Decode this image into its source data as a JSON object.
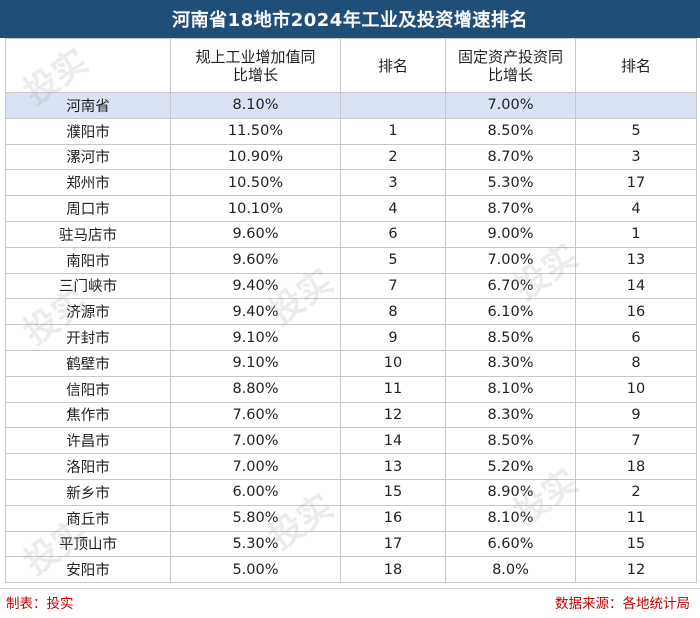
{
  "title": "河南省18地市2024年工业及投资增速排名",
  "headers": {
    "city": "",
    "industry_growth": "规上工业增加值同比增长",
    "industry_rank": "排名",
    "invest_growth": "固定资产投资同比增长",
    "invest_rank": "排名"
  },
  "province": {
    "name": "河南省",
    "industry": "8.10%",
    "industry_rank": "",
    "invest": "7.00%",
    "invest_rank": ""
  },
  "rows": [
    {
      "city": "濮阳市",
      "industry": "11.50%",
      "industry_rank": "1",
      "invest": "8.50%",
      "invest_rank": "5"
    },
    {
      "city": "漯河市",
      "industry": "10.90%",
      "industry_rank": "2",
      "invest": "8.70%",
      "invest_rank": "3"
    },
    {
      "city": "郑州市",
      "industry": "10.50%",
      "industry_rank": "3",
      "invest": "5.30%",
      "invest_rank": "17"
    },
    {
      "city": "周口市",
      "industry": "10.10%",
      "industry_rank": "4",
      "invest": "8.70%",
      "invest_rank": "4"
    },
    {
      "city": "驻马店市",
      "industry": "9.60%",
      "industry_rank": "6",
      "invest": "9.00%",
      "invest_rank": "1"
    },
    {
      "city": "南阳市",
      "industry": "9.60%",
      "industry_rank": "5",
      "invest": "7.00%",
      "invest_rank": "13"
    },
    {
      "city": "三门峡市",
      "industry": "9.40%",
      "industry_rank": "7",
      "invest": "6.70%",
      "invest_rank": "14"
    },
    {
      "city": "济源市",
      "industry": "9.40%",
      "industry_rank": "8",
      "invest": "6.10%",
      "invest_rank": "16"
    },
    {
      "city": "开封市",
      "industry": "9.10%",
      "industry_rank": "9",
      "invest": "8.50%",
      "invest_rank": "6"
    },
    {
      "city": "鹤壁市",
      "industry": "9.10%",
      "industry_rank": "10",
      "invest": "8.30%",
      "invest_rank": "8"
    },
    {
      "city": "信阳市",
      "industry": "8.80%",
      "industry_rank": "11",
      "invest": "8.10%",
      "invest_rank": "10"
    },
    {
      "city": "焦作市",
      "industry": "7.60%",
      "industry_rank": "12",
      "invest": "8.30%",
      "invest_rank": "9"
    },
    {
      "city": "许昌市",
      "industry": "7.00%",
      "industry_rank": "14",
      "invest": "8.50%",
      "invest_rank": "7"
    },
    {
      "city": "洛阳市",
      "industry": "7.00%",
      "industry_rank": "13",
      "invest": "5.20%",
      "invest_rank": "18"
    },
    {
      "city": "新乡市",
      "industry": "6.00%",
      "industry_rank": "15",
      "invest": "8.90%",
      "invest_rank": "2"
    },
    {
      "city": "商丘市",
      "industry": "5.80%",
      "industry_rank": "16",
      "invest": "8.10%",
      "invest_rank": "11"
    },
    {
      "city": "平顶山市",
      "industry": "5.30%",
      "industry_rank": "17",
      "invest": "6.60%",
      "invest_rank": "15"
    },
    {
      "city": "安阳市",
      "industry": "5.00%",
      "industry_rank": "18",
      "invest": "8.0%",
      "invest_rank": "12"
    }
  ],
  "footer": {
    "left": "制表：投实",
    "right": "数据来源：各地统计局"
  },
  "watermark": "投实"
}
